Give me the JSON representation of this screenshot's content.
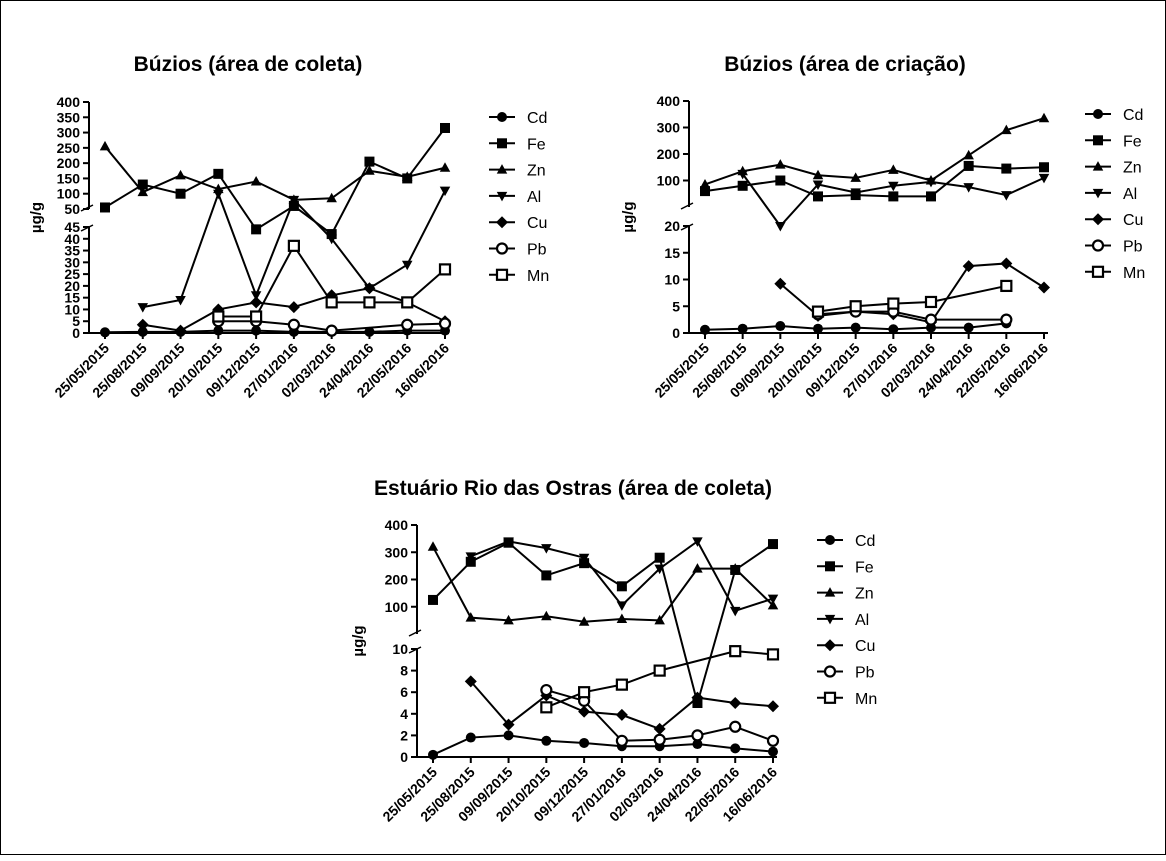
{
  "dates": [
    "25/05/2015",
    "25/08/2015",
    "09/09/2015",
    "20/10/2015",
    "09/12/2015",
    "27/01/2016",
    "02/03/2016",
    "24/04/2016",
    "22/05/2016",
    "16/06/2016"
  ],
  "legend": [
    "Cd",
    "Fe",
    "Zn",
    "Al",
    "Cu",
    "Pb",
    "Mn"
  ],
  "chart_data": [
    {
      "type": "line",
      "title": "Búzios (área de coleta)",
      "ylabel": "µg/g",
      "xlabel": "",
      "categories": [
        "25/05/2015",
        "25/08/2015",
        "09/09/2015",
        "20/10/2015",
        "09/12/2015",
        "27/01/2016",
        "02/03/2016",
        "24/04/2016",
        "22/05/2016",
        "16/06/2016"
      ],
      "y_axis_break": true,
      "upper_ylim": [
        50,
        400
      ],
      "upper_ticks": [
        50,
        100,
        150,
        200,
        250,
        300,
        350,
        400
      ],
      "lower_ylim": [
        0,
        45
      ],
      "lower_ticks": [
        0,
        5,
        10,
        15,
        20,
        25,
        30,
        35,
        40,
        45
      ],
      "series": [
        {
          "name": "Cd",
          "values": [
            0.3,
            0.5,
            0.5,
            1,
            1,
            0.5,
            0.5,
            0.5,
            1,
            1
          ]
        },
        {
          "name": "Fe",
          "values": [
            55,
            130,
            100,
            165,
            44,
            60,
            42,
            205,
            150,
            315
          ]
        },
        {
          "name": "Zn",
          "values": [
            255,
            105,
            160,
            115,
            140,
            80,
            85,
            175,
            155,
            185
          ]
        },
        {
          "name": "Al",
          "values": [
            null,
            11,
            14,
            100,
            16,
            80,
            40,
            19,
            29,
            110
          ]
        },
        {
          "name": "Cu",
          "values": [
            null,
            3.5,
            1,
            10,
            13,
            11,
            16,
            19,
            13,
            5
          ]
        },
        {
          "name": "Pb",
          "values": [
            null,
            null,
            null,
            5,
            5,
            3.5,
            1,
            null,
            3.5,
            4
          ]
        },
        {
          "name": "Mn",
          "values": [
            null,
            null,
            null,
            7,
            7,
            37,
            13,
            13,
            13,
            27
          ]
        }
      ],
      "grid": false,
      "legend_position": "right"
    },
    {
      "type": "line",
      "title": "Búzios (área de criação)",
      "ylabel": "µg/g",
      "xlabel": "",
      "categories": [
        "25/05/2015",
        "25/08/2015",
        "09/09/2015",
        "20/10/2015",
        "09/12/2015",
        "27/01/2016",
        "02/03/2016",
        "24/04/2016",
        "22/05/2016",
        "16/06/2016"
      ],
      "y_axis_break": true,
      "upper_ylim": [
        0,
        400
      ],
      "upper_ticks": [
        100,
        200,
        300,
        400
      ],
      "lower_ylim": [
        0,
        20
      ],
      "lower_ticks": [
        0,
        5,
        10,
        15,
        20
      ],
      "series": [
        {
          "name": "Cd",
          "values": [
            0.6,
            0.8,
            1.3,
            0.8,
            1,
            0.7,
            1,
            1,
            1.8,
            null
          ]
        },
        {
          "name": "Fe",
          "values": [
            60,
            80,
            100,
            40,
            45,
            40,
            40,
            155,
            145,
            150
          ]
        },
        {
          "name": "Zn",
          "values": [
            85,
            135,
            160,
            120,
            110,
            140,
            100,
            195,
            290,
            335
          ]
        },
        {
          "name": "Al",
          "values": [
            null,
            125,
            20,
            85,
            55,
            80,
            95,
            75,
            45,
            110
          ]
        },
        {
          "name": "Cu",
          "values": [
            null,
            null,
            9.2,
            3.2,
            4,
            3.5,
            2,
            12.5,
            13,
            8.5
          ]
        },
        {
          "name": "Pb",
          "values": [
            null,
            null,
            null,
            3.5,
            4,
            4,
            2.5,
            null,
            2.5,
            null
          ]
        },
        {
          "name": "Mn",
          "values": [
            null,
            null,
            null,
            4,
            5,
            5.5,
            5.8,
            null,
            8.8,
            null
          ]
        }
      ],
      "grid": false,
      "legend_position": "right"
    },
    {
      "type": "line",
      "title": "Estuário Rio das Ostras (área de coleta)",
      "ylabel": "µg/g",
      "xlabel": "",
      "categories": [
        "25/05/2015",
        "25/08/2015",
        "09/09/2015",
        "20/10/2015",
        "09/12/2015",
        "27/01/2016",
        "02/03/2016",
        "24/04/2016",
        "22/05/2016",
        "16/06/2016"
      ],
      "y_axis_break": true,
      "upper_ylim": [
        0,
        400
      ],
      "upper_ticks": [
        100,
        200,
        300,
        400
      ],
      "lower_ylim": [
        0,
        10
      ],
      "lower_ticks": [
        0,
        2,
        4,
        6,
        8,
        10
      ],
      "series": [
        {
          "name": "Cd",
          "values": [
            0.2,
            1.8,
            2,
            1.5,
            1.3,
            1,
            1,
            1.2,
            0.8,
            0.5
          ]
        },
        {
          "name": "Fe",
          "values": [
            125,
            265,
            335,
            215,
            260,
            175,
            280,
            5,
            235,
            330
          ]
        },
        {
          "name": "Zn",
          "values": [
            320,
            60,
            50,
            65,
            45,
            55,
            50,
            240,
            240,
            105
          ]
        },
        {
          "name": "Al",
          "values": [
            null,
            285,
            340,
            315,
            280,
            105,
            240,
            340,
            85,
            130
          ]
        },
        {
          "name": "Cu",
          "values": [
            null,
            7,
            3,
            5.7,
            4.2,
            3.9,
            2.6,
            5.5,
            5,
            4.7
          ]
        },
        {
          "name": "Pb",
          "values": [
            null,
            null,
            null,
            6.2,
            5.2,
            1.5,
            1.6,
            2,
            2.8,
            1.5
          ]
        },
        {
          "name": "Mn",
          "values": [
            null,
            null,
            null,
            4.6,
            6,
            6.7,
            8,
            null,
            9.8,
            9.5
          ]
        }
      ],
      "grid": false,
      "legend_position": "right"
    }
  ]
}
